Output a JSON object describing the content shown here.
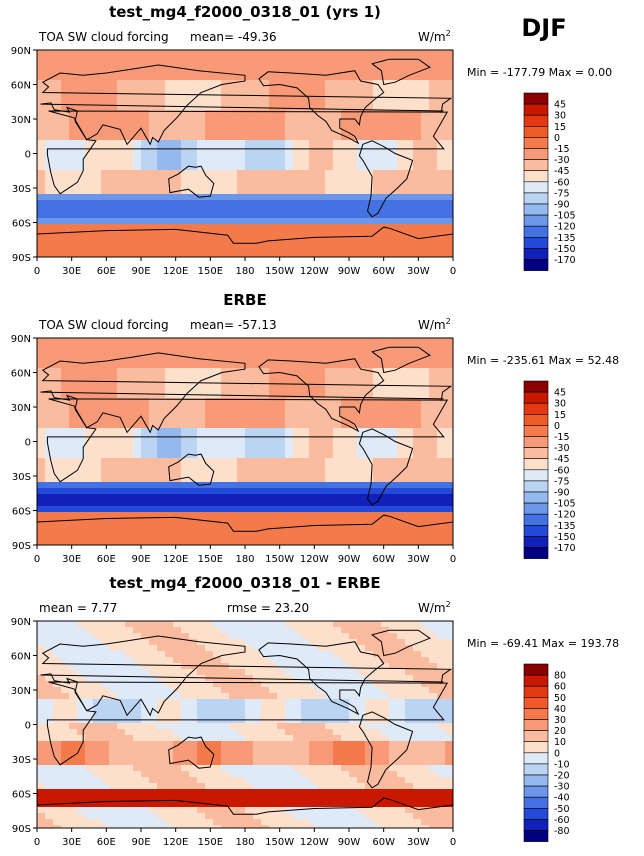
{
  "season": "DJF",
  "panels": [
    {
      "title": "test_mg4_f2000_0318_01 (yrs 1)",
      "subtitle": "TOA SW cloud forcing",
      "stat1": "mean= -49.36",
      "stat2": "",
      "units": "W/m",
      "units_sup": "2",
      "minmax": "Min = -177.79 Max =   0.00",
      "legend_levels": [
        "45",
        "30",
        "15",
        "0",
        "-15",
        "-30",
        "-45",
        "-60",
        "-75",
        "-90",
        "-105",
        "-120",
        "-135",
        "-150",
        "-170"
      ],
      "legend_colors": [
        "#8b0000",
        "#c81800",
        "#e43810",
        "#f05a28",
        "#f47a4c",
        "#f89a78",
        "#fbbb9e",
        "#fde0cc",
        "#dfeaf8",
        "#bcd4f4",
        "#96b8f0",
        "#6c96ea",
        "#4472e2",
        "#2448d8",
        "#1020b8",
        "#000080"
      ]
    },
    {
      "title": "ERBE",
      "subtitle": "TOA SW cloud forcing",
      "stat1": "mean= -57.13",
      "stat2": "",
      "units": "W/m",
      "units_sup": "2",
      "minmax": "Min = -235.61 Max =  52.48",
      "legend_levels": [
        "45",
        "30",
        "15",
        "0",
        "-15",
        "-30",
        "-45",
        "-60",
        "-75",
        "-90",
        "-105",
        "-120",
        "-135",
        "-150",
        "-170"
      ],
      "legend_colors": [
        "#8b0000",
        "#c81800",
        "#e43810",
        "#f05a28",
        "#f47a4c",
        "#f89a78",
        "#fbbb9e",
        "#fde0cc",
        "#dfeaf8",
        "#bcd4f4",
        "#96b8f0",
        "#6c96ea",
        "#4472e2",
        "#2448d8",
        "#1020b8",
        "#000080"
      ]
    },
    {
      "title": "test_mg4_f2000_0318_01 - ERBE",
      "subtitle": "mean =   7.77",
      "stat1": "",
      "stat2": "rmse =  23.20",
      "units": "W/m",
      "units_sup": "2",
      "minmax": "Min = -69.41 Max = 193.78",
      "legend_levels": [
        "80",
        "60",
        "50",
        "40",
        "30",
        "20",
        "10",
        "0",
        "-10",
        "-20",
        "-30",
        "-40",
        "-50",
        "-60",
        "-80"
      ],
      "legend_colors": [
        "#8b0000",
        "#c81800",
        "#e43810",
        "#f05a28",
        "#f47a4c",
        "#f89a78",
        "#fbbb9e",
        "#fde0cc",
        "#dfeaf8",
        "#bcd4f4",
        "#96b8f0",
        "#6c96ea",
        "#4472e2",
        "#2448d8",
        "#1020b8",
        "#000080"
      ]
    }
  ],
  "lat_labels": [
    "90N",
    "60N",
    "30N",
    "0",
    "30S",
    "60S",
    "90S"
  ],
  "lon_labels": [
    "0",
    "30E",
    "60E",
    "90E",
    "120E",
    "150E",
    "180",
    "150W",
    "120W",
    "90W",
    "60W",
    "30W",
    "0"
  ]
}
